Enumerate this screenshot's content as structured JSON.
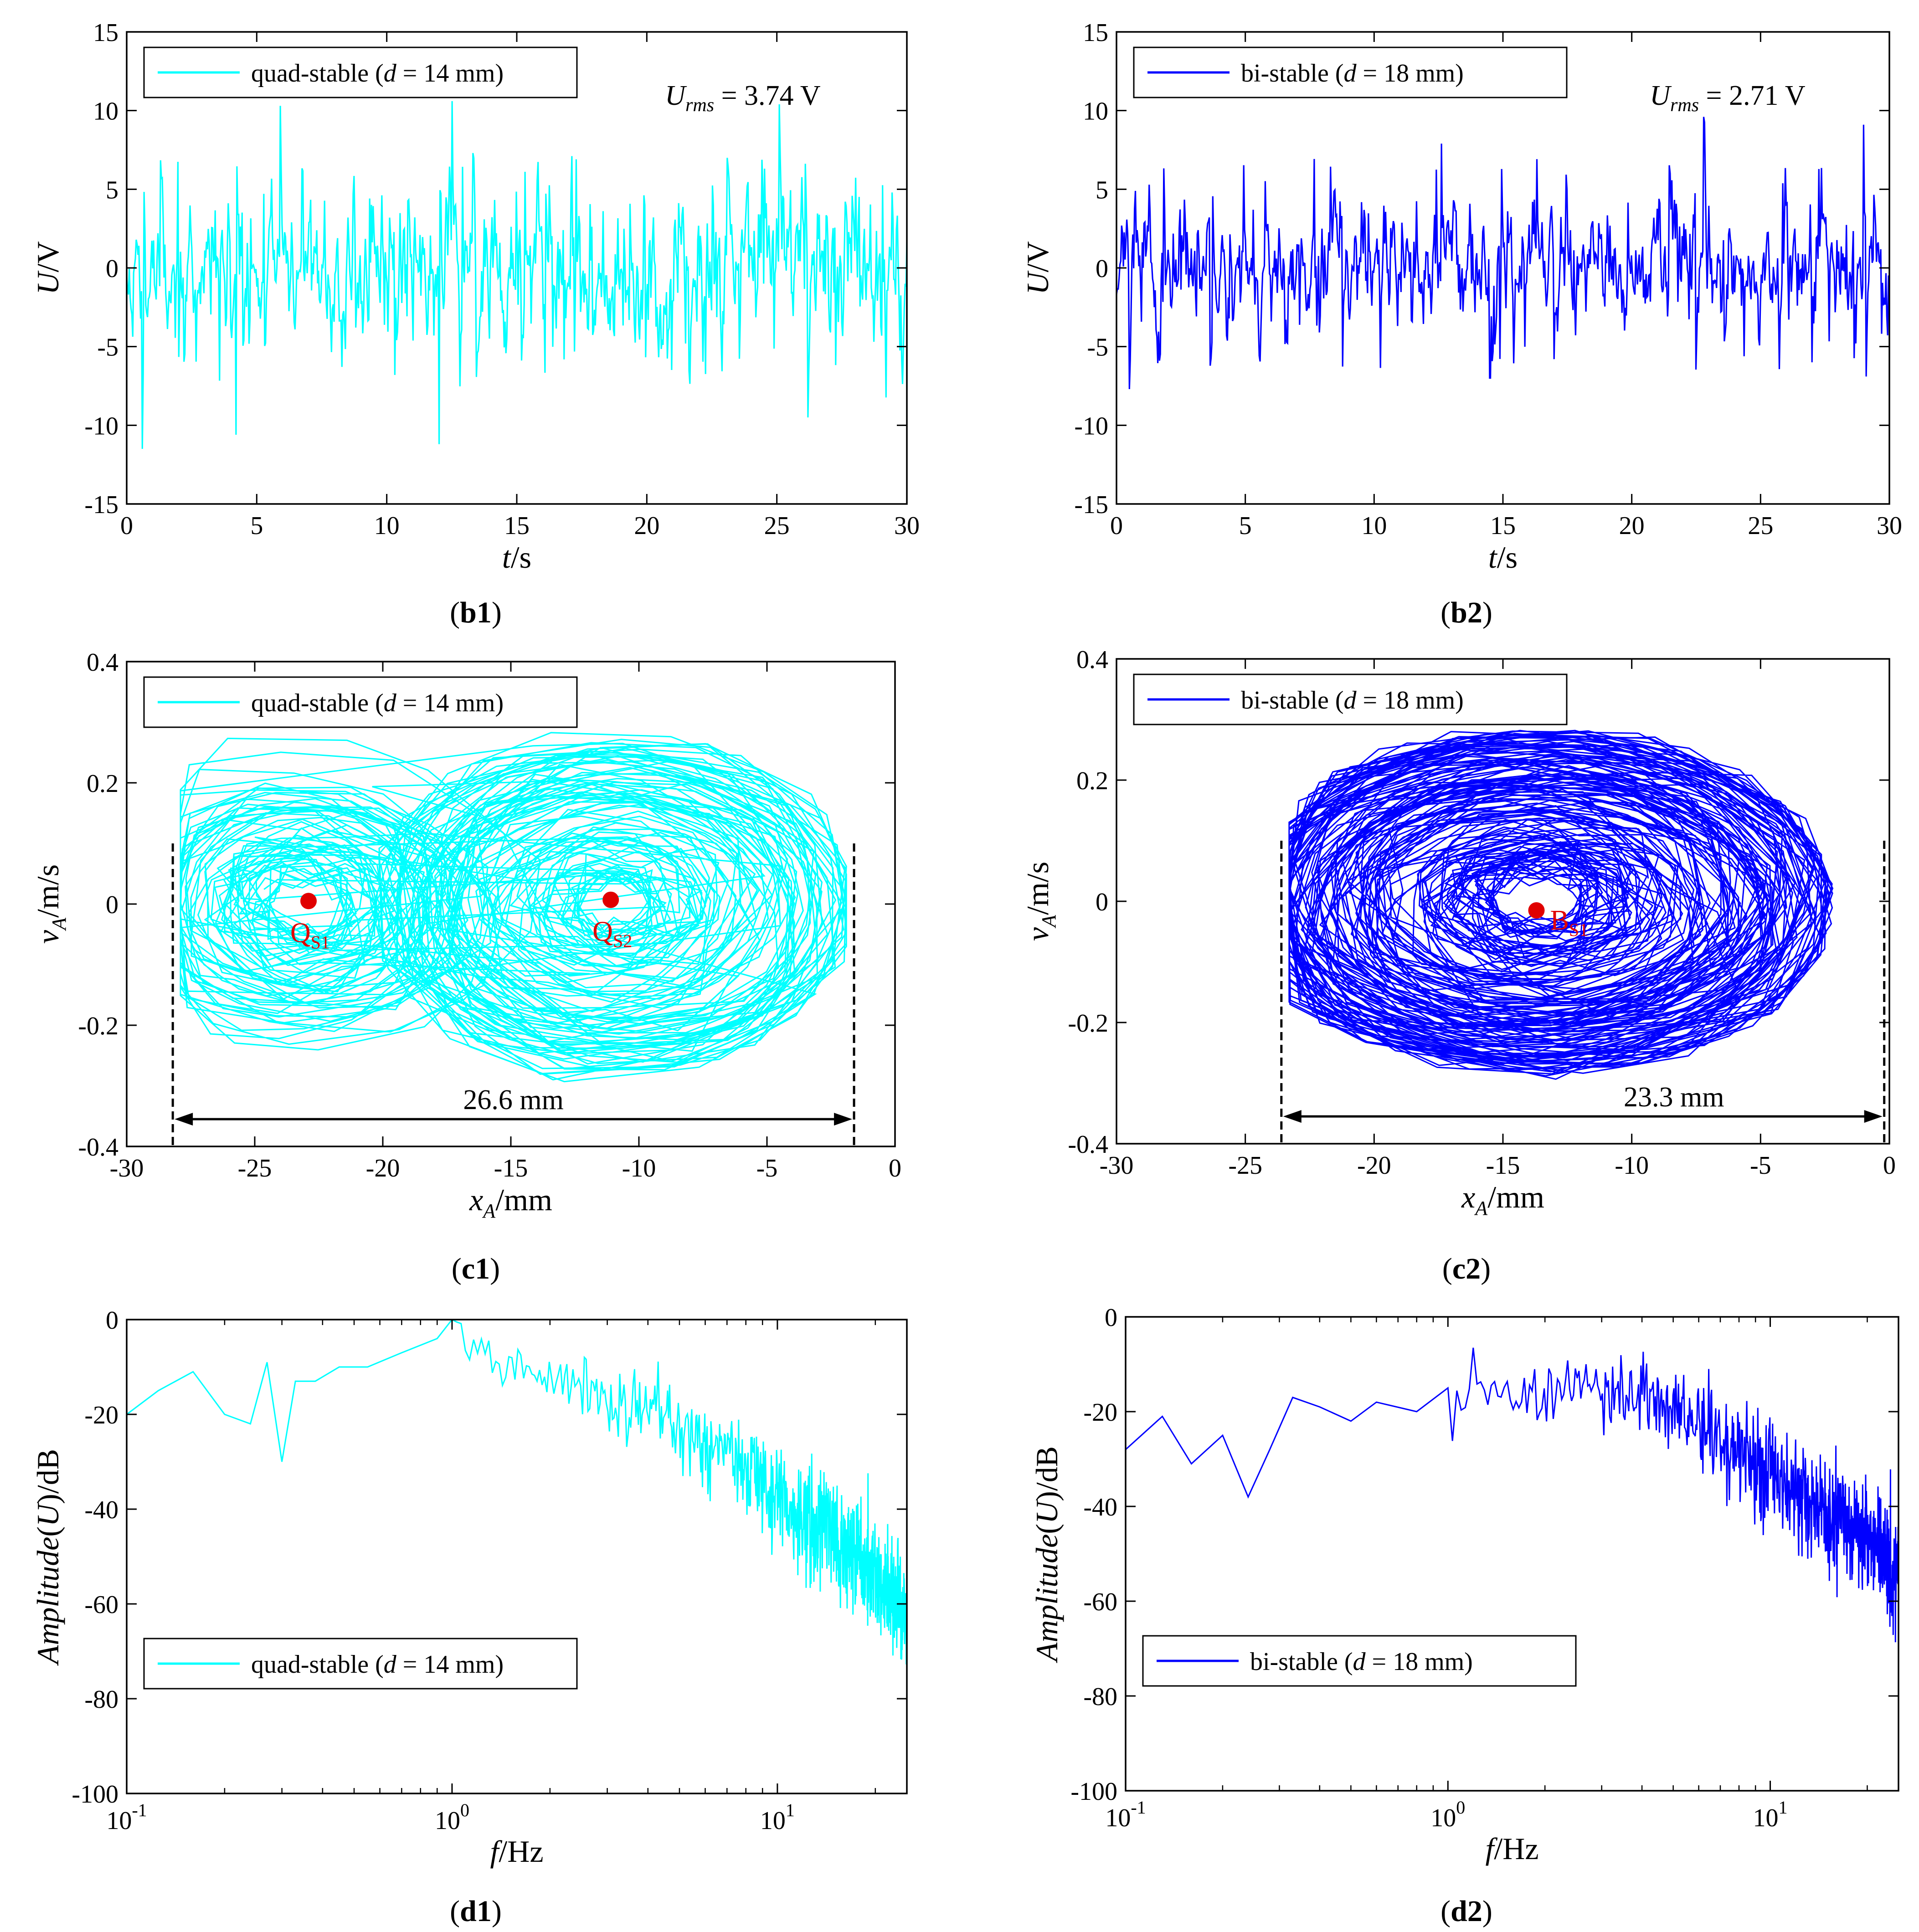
{
  "chart_data": [
    {
      "id": "b1",
      "type": "line",
      "caption": "(b1)",
      "xlabel_var": "t",
      "xlabel_unit": "/s",
      "ylabel_var": "U",
      "ylabel_unit": "/V",
      "xlim": [
        0,
        30
      ],
      "ylim": [
        -15,
        15
      ],
      "xticks": [
        "0",
        "5",
        "10",
        "15",
        "20",
        "25",
        "30"
      ],
      "yticks": [
        "15",
        "10",
        "5",
        "0",
        "-5",
        "-10",
        "-15"
      ],
      "color": "#00ffff",
      "legend": {
        "prefix": "quad-stable (",
        "var": "d",
        "suffix": " = 14 mm)",
        "position": "top-left"
      },
      "annotation": {
        "var": "U",
        "sub": "rms",
        "value": " = 3.74 V"
      },
      "series": {
        "seed": 11,
        "n": 900,
        "amp": 3.74,
        "peaks": [
          [
            5.9,
            10.3
          ],
          [
            12.5,
            10.6
          ],
          [
            25.1,
            10.4
          ],
          [
            0.6,
            -11.5
          ],
          [
            12.0,
            -11.2
          ],
          [
            4.2,
            -10.6
          ],
          [
            26.2,
            -9.5
          ]
        ]
      }
    },
    {
      "id": "b2",
      "type": "line",
      "caption": "(b2)",
      "xlabel_var": "t",
      "xlabel_unit": "/s",
      "ylabel_var": "U",
      "ylabel_unit": "/V",
      "xlim": [
        0,
        30
      ],
      "ylim": [
        -15,
        15
      ],
      "xticks": [
        "0",
        "5",
        "10",
        "15",
        "20",
        "25",
        "30"
      ],
      "yticks": [
        "15",
        "10",
        "5",
        "0",
        "-5",
        "-10",
        "-15"
      ],
      "color": "#0000ff",
      "legend": {
        "prefix": "bi-stable (",
        "var": "d",
        "suffix": " = 18 mm)",
        "position": "top-left"
      },
      "annotation": {
        "var": "U",
        "sub": "rms",
        "value": " = 2.71 V"
      },
      "series": {
        "seed": 23,
        "n": 900,
        "amp": 2.71,
        "peaks": [
          [
            22.8,
            9.6
          ],
          [
            29.0,
            9.1
          ],
          [
            12.6,
            7.9
          ],
          [
            0.5,
            -7.7
          ],
          [
            14.5,
            -7.0
          ],
          [
            29.1,
            -6.9
          ]
        ]
      }
    },
    {
      "id": "c1",
      "type": "scatter-phase",
      "caption": "(c1)",
      "xlabel_var": "x",
      "xlabel_sub": "A",
      "xlabel_unit": "/mm",
      "ylabel_var": "v",
      "ylabel_sub": "A",
      "ylabel_unit": "/m/s",
      "xlim": [
        -30,
        0
      ],
      "ylim": [
        -0.4,
        0.4
      ],
      "xticks": [
        "-30",
        "-25",
        "-20",
        "-15",
        "-10",
        "-5",
        "0"
      ],
      "yticks": [
        "0.4",
        "0.2",
        "0",
        "-0.2",
        "-0.4"
      ],
      "color": "#00ffff",
      "legend": {
        "prefix": "quad-stable (",
        "var": "d",
        "suffix": " = 14 mm)",
        "position": "top-left"
      },
      "wells": [
        -23,
        -11
      ],
      "x_extent": [
        -28.2,
        -1.6
      ],
      "span_label": "26.6 mm",
      "points": [
        {
          "label": "Q",
          "sub": "S1",
          "x": -22.9,
          "y": 0.005
        },
        {
          "label": "Q",
          "sub": "S2",
          "x": -11.1,
          "y": 0.007
        }
      ],
      "series": {
        "seed": 5,
        "n": 1800
      }
    },
    {
      "id": "c2",
      "type": "scatter-phase",
      "caption": "(c2)",
      "xlabel_var": "x",
      "xlabel_sub": "A",
      "xlabel_unit": "/mm",
      "ylabel_var": "v",
      "ylabel_sub": "A",
      "ylabel_unit": "/m/s",
      "xlim": [
        -30,
        0
      ],
      "ylim": [
        -0.4,
        0.4
      ],
      "xticks": [
        "-30",
        "-25",
        "-20",
        "-15",
        "-10",
        "-5",
        "0"
      ],
      "yticks": [
        "0.4",
        "0.2",
        "0",
        "-0.2",
        "-0.4"
      ],
      "color": "#0000ff",
      "legend": {
        "prefix": "bi-stable (",
        "var": "d",
        "suffix": " = 18 mm)",
        "position": "top-left"
      },
      "wells": [
        -13.7
      ],
      "x_extent": [
        -23.6,
        -0.2
      ],
      "span_label": "23.3 mm",
      "points": [
        {
          "label": "B",
          "sub": "S1",
          "x": -13.7,
          "y": -0.015
        }
      ],
      "series": {
        "seed": 9,
        "n": 1800
      }
    },
    {
      "id": "d1",
      "type": "line-logx",
      "caption": "(d1)",
      "xlabel_var": "f",
      "xlabel_unit": "/Hz",
      "ylabel_var": "Amplitude",
      "ylabel_paren": "U",
      "ylabel_unit": "/dB",
      "xlim": [
        0.1,
        25
      ],
      "ylim": [
        -100,
        0
      ],
      "xticks": [
        {
          "base": "10",
          "exp": "-1",
          "v": 0.1
        },
        {
          "base": "10",
          "exp": "0",
          "v": 1
        },
        {
          "base": "10",
          "exp": "1",
          "v": 10
        }
      ],
      "yticks": [
        "0",
        "-20",
        "-40",
        "-60",
        "-80",
        "-100"
      ],
      "color": "#00ffff",
      "legend": {
        "prefix": "quad-stable (",
        "var": "d",
        "suffix": " = 14 mm)",
        "position": "bottom-left"
      },
      "anchors": [
        [
          0.1,
          -20
        ],
        [
          0.125,
          -15
        ],
        [
          0.16,
          -11
        ],
        [
          0.2,
          -20
        ],
        [
          0.24,
          -22
        ],
        [
          0.27,
          -9
        ],
        [
          0.3,
          -30
        ],
        [
          0.33,
          -13
        ],
        [
          0.38,
          -13
        ],
        [
          0.45,
          -10
        ],
        [
          0.55,
          -10
        ],
        [
          0.7,
          -7
        ],
        [
          0.9,
          -4
        ],
        [
          1.0,
          0
        ],
        [
          1.5,
          -10
        ],
        [
          2.0,
          -11
        ],
        [
          3.0,
          -14
        ],
        [
          4.0,
          -17
        ],
        [
          6.0,
          -24
        ],
        [
          8.0,
          -29
        ],
        [
          10.0,
          -35
        ],
        [
          15.0,
          -42
        ],
        [
          20.0,
          -50
        ],
        [
          25.0,
          -60
        ]
      ],
      "series": {
        "seed": 31
      }
    },
    {
      "id": "d2",
      "type": "line-logx",
      "caption": "(d2)",
      "xlabel_var": "f",
      "xlabel_unit": "/Hz",
      "ylabel_var": "Amplitude",
      "ylabel_paren": "U",
      "ylabel_unit": "/dB",
      "xlim": [
        0.1,
        25
      ],
      "ylim": [
        -100,
        0
      ],
      "xticks": [
        {
          "base": "10",
          "exp": "-1",
          "v": 0.1
        },
        {
          "base": "10",
          "exp": "0",
          "v": 1
        },
        {
          "base": "10",
          "exp": "1",
          "v": 10
        }
      ],
      "yticks": [
        "0",
        "-20",
        "-40",
        "-60",
        "-80",
        "-100"
      ],
      "color": "#0000ff",
      "legend": {
        "prefix": "bi-stable (",
        "var": "d",
        "suffix": " = 18 mm)",
        "position": "bottom-left"
      },
      "anchors": [
        [
          0.1,
          -28
        ],
        [
          0.13,
          -21
        ],
        [
          0.16,
          -31
        ],
        [
          0.2,
          -25
        ],
        [
          0.24,
          -38
        ],
        [
          0.28,
          -28
        ],
        [
          0.33,
          -17
        ],
        [
          0.4,
          -19
        ],
        [
          0.5,
          -22
        ],
        [
          0.6,
          -18
        ],
        [
          0.8,
          -20
        ],
        [
          1.0,
          -15
        ],
        [
          1.5,
          -16
        ],
        [
          2.0,
          -15
        ],
        [
          3.0,
          -13
        ],
        [
          4.0,
          -13
        ],
        [
          6.0,
          -20
        ],
        [
          8.0,
          -26
        ],
        [
          10.0,
          -31
        ],
        [
          15.0,
          -38
        ],
        [
          20.0,
          -44
        ],
        [
          25.0,
          -52
        ]
      ],
      "series": {
        "seed": 47
      }
    }
  ]
}
